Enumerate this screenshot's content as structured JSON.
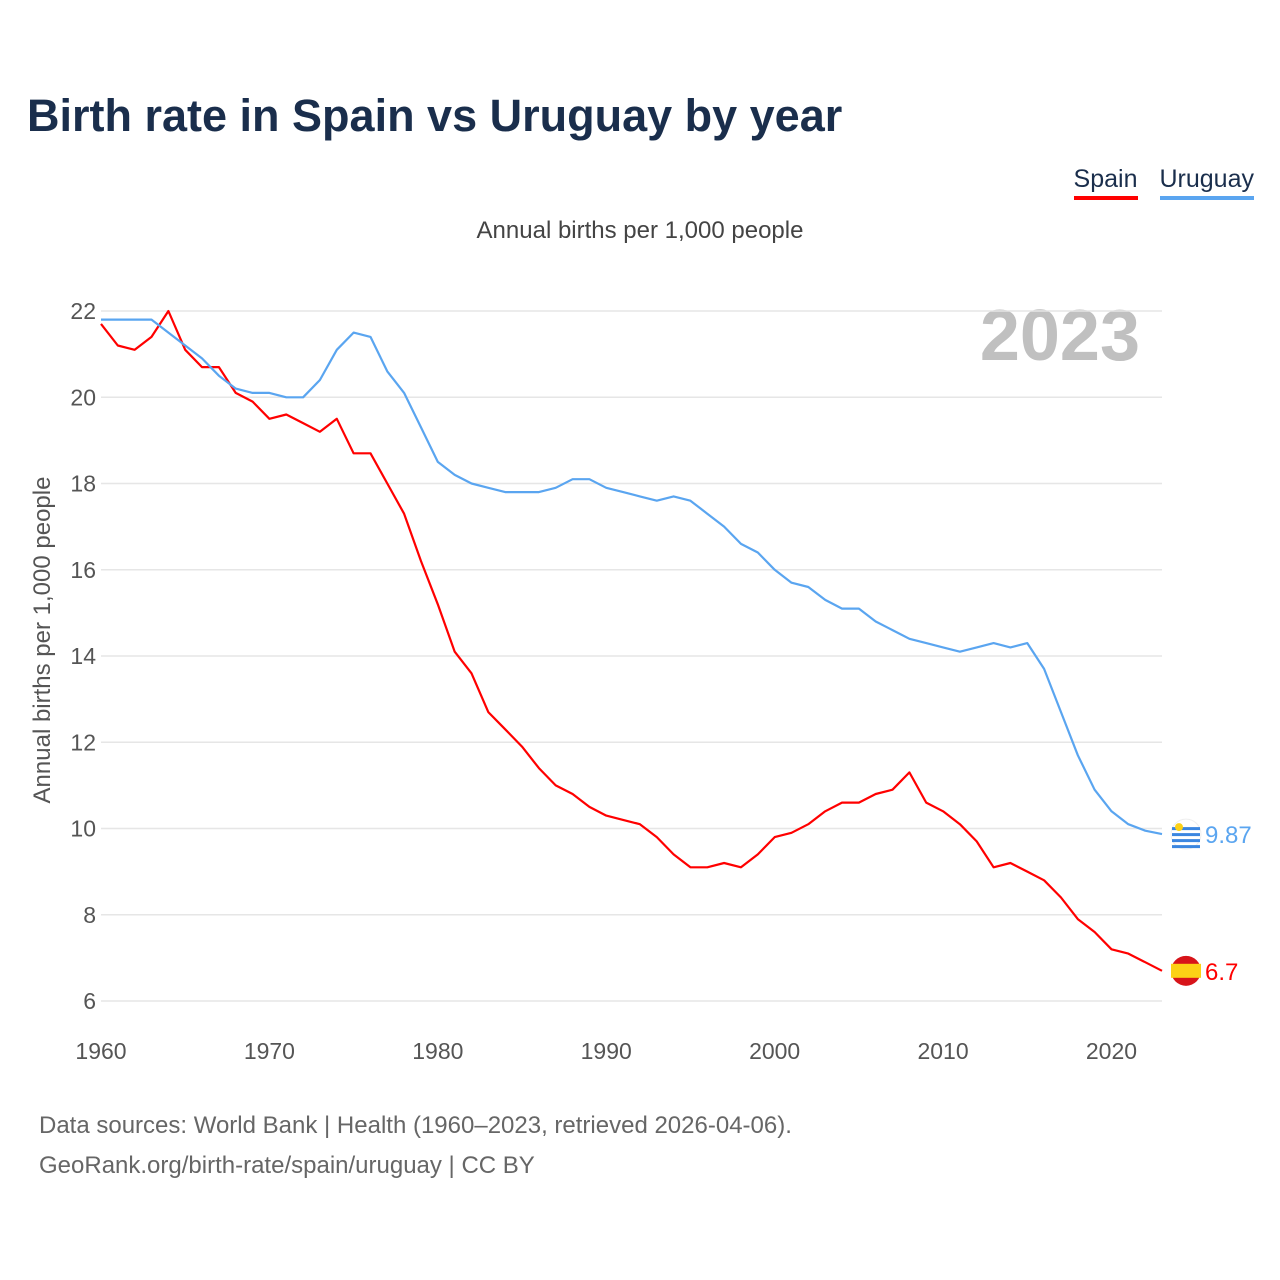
{
  "title": "Birth rate in Spain vs Uruguay by year",
  "subtitle": "Annual births per 1,000 people",
  "footer": [
    "Data sources: World Bank | Health (1960–2023, retrieved 2026-04-06).",
    "GeoRank.org/birth-rate/spain/uruguay | CC BY"
  ],
  "year_label": "2023",
  "colors": {
    "spain": "#ff0000",
    "uruguay": "#5aa5f0"
  },
  "chart_data": {
    "type": "line",
    "title": "Birth rate in Spain vs Uruguay by year",
    "xlabel": "",
    "ylabel": "Annual births per 1,000 people",
    "xlim": [
      1960,
      2023
    ],
    "ylim": [
      6,
      22
    ],
    "xticks": [
      1960,
      1970,
      1980,
      1990,
      2000,
      2010,
      2020
    ],
    "yticks": [
      6,
      8,
      10,
      12,
      14,
      16,
      18,
      20,
      22
    ],
    "grid": true,
    "legend": "top-right",
    "x_start": 1960,
    "series": [
      {
        "name": "Spain",
        "end_label": "6.7",
        "values": [
          21.7,
          21.2,
          21.1,
          21.4,
          22.0,
          21.1,
          20.7,
          20.7,
          20.1,
          19.9,
          19.5,
          19.6,
          19.4,
          19.2,
          19.5,
          18.7,
          18.7,
          18.0,
          17.3,
          16.2,
          15.2,
          14.1,
          13.6,
          12.7,
          12.3,
          11.9,
          11.4,
          11.0,
          10.8,
          10.5,
          10.3,
          10.2,
          10.1,
          9.8,
          9.4,
          9.1,
          9.1,
          9.2,
          9.1,
          9.4,
          9.8,
          9.9,
          10.1,
          10.4,
          10.6,
          10.6,
          10.8,
          10.9,
          11.3,
          10.6,
          10.4,
          10.1,
          9.7,
          9.1,
          9.2,
          9.0,
          8.8,
          8.4,
          7.9,
          7.6,
          7.2,
          7.1,
          6.9,
          6.7
        ]
      },
      {
        "name": "Uruguay",
        "end_label": "9.87",
        "values": [
          21.8,
          21.8,
          21.8,
          21.8,
          21.5,
          21.2,
          20.9,
          20.5,
          20.2,
          20.1,
          20.1,
          20.0,
          20.0,
          20.4,
          21.1,
          21.5,
          21.4,
          20.6,
          20.1,
          19.3,
          18.5,
          18.2,
          18.0,
          17.9,
          17.8,
          17.8,
          17.8,
          17.9,
          18.1,
          18.1,
          17.9,
          17.8,
          17.7,
          17.6,
          17.7,
          17.6,
          17.3,
          17.0,
          16.6,
          16.4,
          16.0,
          15.7,
          15.6,
          15.3,
          15.1,
          15.1,
          14.8,
          14.6,
          14.4,
          14.3,
          14.2,
          14.1,
          14.2,
          14.3,
          14.2,
          14.3,
          13.7,
          12.7,
          11.7,
          10.9,
          10.4,
          10.1,
          9.95,
          9.87
        ]
      }
    ]
  }
}
